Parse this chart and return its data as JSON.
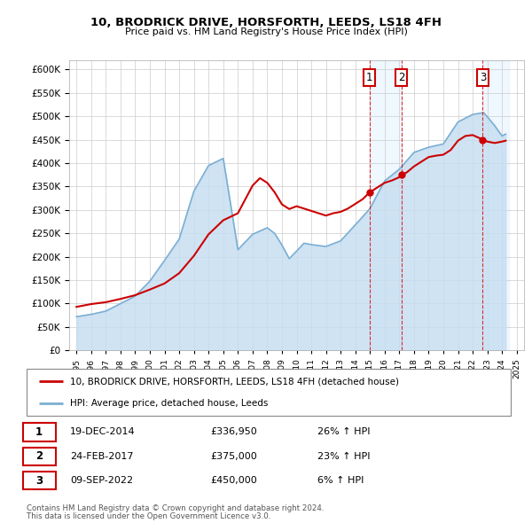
{
  "title": "10, BRODRICK DRIVE, HORSFORTH, LEEDS, LS18 4FH",
  "subtitle": "Price paid vs. HM Land Registry's House Price Index (HPI)",
  "legend_line1": "10, BRODRICK DRIVE, HORSFORTH, LEEDS, LS18 4FH (detached house)",
  "legend_line2": "HPI: Average price, detached house, Leeds",
  "footnote1": "Contains HM Land Registry data © Crown copyright and database right 2024.",
  "footnote2": "This data is licensed under the Open Government Licence v3.0.",
  "transactions": [
    {
      "num": 1,
      "date": "19-DEC-2014",
      "price": "£336,950",
      "hpi": "26% ↑ HPI",
      "x": 2014.96
    },
    {
      "num": 2,
      "date": "24-FEB-2017",
      "price": "£375,000",
      "hpi": "23% ↑ HPI",
      "x": 2017.14
    },
    {
      "num": 3,
      "date": "09-SEP-2022",
      "price": "£450,000",
      "hpi": "6% ↑ HPI",
      "x": 2022.69
    }
  ],
  "transaction_prices": [
    336950,
    375000,
    450000
  ],
  "sale_color": "#cc0000",
  "hpi_color": "#7bafd4",
  "hpi_fill_color": "#c5ddf0",
  "shade_color": "#ddeeff",
  "grid_color": "#cccccc",
  "ylim": [
    0,
    620000
  ],
  "yticks": [
    0,
    50000,
    100000,
    150000,
    200000,
    250000,
    300000,
    350000,
    400000,
    450000,
    500000,
    550000,
    600000
  ],
  "xlim_start": 1994.5,
  "xlim_end": 2025.5,
  "xticks": [
    1995,
    1996,
    1997,
    1998,
    1999,
    2000,
    2001,
    2002,
    2003,
    2004,
    2005,
    2006,
    2007,
    2008,
    2009,
    2010,
    2011,
    2012,
    2013,
    2014,
    2015,
    2016,
    2017,
    2018,
    2019,
    2020,
    2021,
    2022,
    2023,
    2024,
    2025
  ],
  "shade_regions": [
    {
      "x_start": 2014.96,
      "x_end": 2017.14
    },
    {
      "x_start": 2022.69,
      "x_end": 2024.5
    }
  ],
  "vline_color": "#dd0000",
  "vline_style": "--"
}
